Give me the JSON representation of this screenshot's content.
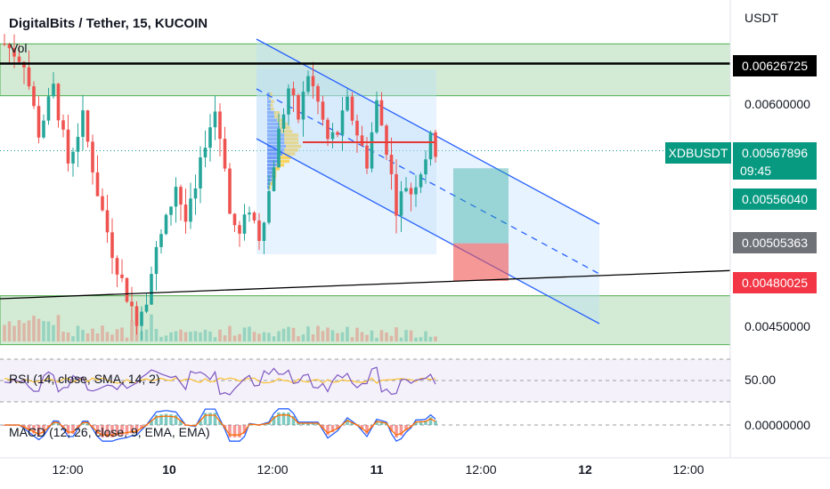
{
  "header": {
    "title": "DigitalBits / Tether, 15, KUCOIN",
    "volume_label": "Vol"
  },
  "indicators": {
    "rsi": "RSI (14, close, SMA, 14, 2)",
    "macd": "MACD (12, 26, close, 9, EMA, EMA)"
  },
  "price_axis": {
    "currency": "USDT",
    "ticks": [
      "0.00600000",
      "0.00450000"
    ],
    "rsi_tick": "50.00",
    "macd_tick": "0.00000000"
  },
  "tags": {
    "black": "0.00626725",
    "symbol": "XDBUSDT",
    "last": "0.00567896",
    "countdown": "09:45",
    "target": "0.00556040",
    "entry": "0.00505363",
    "stop": "0.00480025"
  },
  "time_axis": [
    "12:00",
    "10",
    "12:00",
    "11",
    "12:00",
    "12",
    "12:00"
  ],
  "colors": {
    "up": "#26a69a",
    "down": "#ef5350",
    "zone": "#c8e6c9",
    "zone_edge": "#4caf50",
    "channel": "#2962ff",
    "rsi_line": "#7e57c2",
    "rsi_sma": "#fbc02d",
    "macd_line": "#2962ff",
    "signal_line": "#ff6d00",
    "black_tag": "#000000",
    "last_tag": "#089981",
    "entry_tag": "#6f7378",
    "stop_tag": "#f23645"
  },
  "chart_data": {
    "type": "candlestick",
    "pair": "XDBUSDT",
    "interval": "15",
    "exchange": "KUCOIN",
    "path": [
      [
        0,
        0.0064
      ],
      [
        4,
        0.00628
      ],
      [
        7,
        0.0058
      ],
      [
        10,
        0.0061
      ],
      [
        13,
        0.0056
      ],
      [
        16,
        0.0059
      ],
      [
        19,
        0.0054
      ],
      [
        22,
        0.005
      ],
      [
        25,
        0.0047
      ],
      [
        27,
        0.00455
      ],
      [
        29,
        0.0047
      ],
      [
        31,
        0.005
      ],
      [
        33,
        0.0052
      ],
      [
        35,
        0.00545
      ],
      [
        37,
        0.0052
      ],
      [
        39,
        0.0054
      ],
      [
        41,
        0.00575
      ],
      [
        43,
        0.00595
      ],
      [
        45,
        0.0056
      ],
      [
        46,
        0.00525
      ],
      [
        48,
        0.0051
      ],
      [
        50,
        0.0053
      ],
      [
        52,
        0.0051
      ],
      [
        54,
        0.0054
      ],
      [
        56,
        0.0058
      ],
      [
        58,
        0.0061
      ],
      [
        60,
        0.0059
      ],
      [
        62,
        0.0062
      ],
      [
        64,
        0.006
      ],
      [
        66,
        0.00575
      ],
      [
        68,
        0.0058
      ],
      [
        70,
        0.006
      ],
      [
        72,
        0.0058
      ],
      [
        74,
        0.0056
      ],
      [
        76,
        0.006
      ],
      [
        78,
        0.0057
      ],
      [
        80,
        0.0053
      ],
      [
        82,
        0.00545
      ],
      [
        83,
        0.0054
      ],
      [
        85,
        0.00555
      ],
      [
        87,
        0.00575
      ],
      [
        88,
        0.00568
      ]
    ],
    "resistance_zone": [
      0.00605,
      0.0064
    ],
    "black_line": 0.00626725,
    "support_zone": [
      0.00437,
      0.0047
    ],
    "trendline": {
      "from": 0.00468,
      "to": 0.00487
    },
    "position": {
      "target": 0.0055604,
      "entry": 0.00505363,
      "stop": 0.00480025
    },
    "rsi_ylim": [
      20,
      80
    ],
    "rsi_levels": [
      70,
      50,
      30
    ],
    "macd_zero": 0
  }
}
